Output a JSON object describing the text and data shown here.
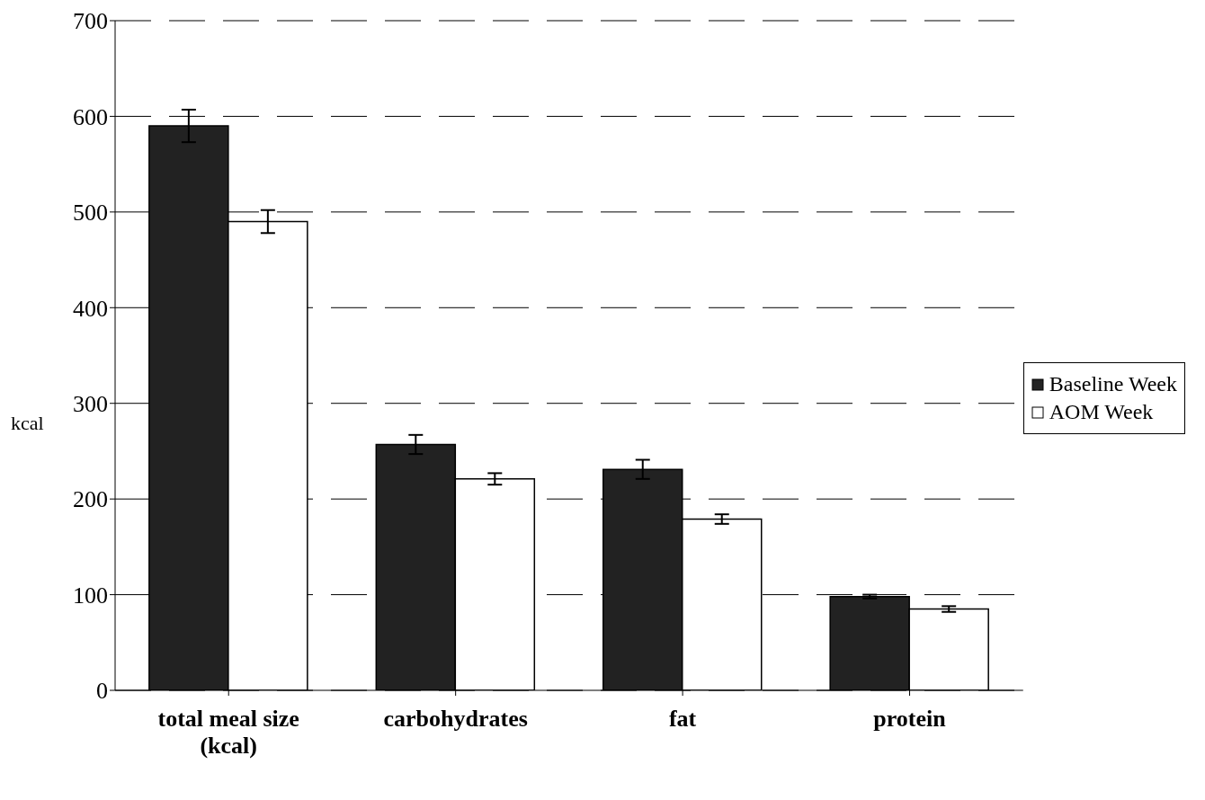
{
  "chart_data": {
    "type": "bar",
    "ylabel": "kcal",
    "categories": [
      "total meal size\n(kcal)",
      "carbohydrates",
      "fat",
      "protein"
    ],
    "series": [
      {
        "name": "Baseline Week",
        "color": "#222222",
        "values": [
          590,
          257,
          231,
          98
        ],
        "errors": [
          17,
          10,
          10,
          2
        ]
      },
      {
        "name": "AOM Week",
        "color": "#ffffff",
        "values": [
          490,
          221,
          179,
          85
        ],
        "errors": [
          12,
          6,
          5,
          3
        ]
      }
    ],
    "ylim": [
      0,
      700
    ],
    "yticks": [
      0,
      100,
      200,
      300,
      400,
      500,
      600,
      700
    ],
    "grid": "y",
    "legend": "right"
  }
}
